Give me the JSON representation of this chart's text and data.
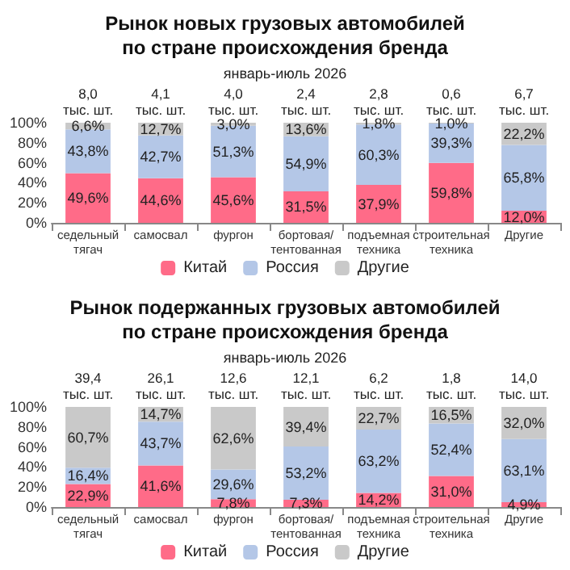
{
  "chart_data": [
    {
      "type": "bar",
      "title": "Рынок новых грузовых автомобилей\nпо стране происхождения бренда",
      "subtitle": "январь-июль 2026",
      "stacked": true,
      "legend": "bottom",
      "grid": false,
      "categories": [
        "седельный тягач",
        "самосвал",
        "фургон",
        "бортовая/ тентованная",
        "подъемная техника",
        "строительная техника",
        "Другие"
      ],
      "ylim": [
        0,
        100
      ],
      "yticks": [
        {
          "value": 0,
          "label": "0%"
        },
        {
          "value": 20,
          "label": "20%"
        },
        {
          "value": 40,
          "label": "40%"
        },
        {
          "value": 60,
          "label": "60%"
        },
        {
          "value": 80,
          "label": "80%"
        },
        {
          "value": 100,
          "label": "100%"
        }
      ],
      "annotations": [
        {
          "text": "8,0 тыс. шт.",
          "x": "седельный тягач",
          "y": 100
        },
        {
          "text": "4,1 тыс. шт.",
          "x": "самосвал",
          "y": 100
        },
        {
          "text": "4,0 тыс. шт.",
          "x": "фургон",
          "y": 100
        },
        {
          "text": "2,4 тыс. шт.",
          "x": "бортовая/ тентованная",
          "y": 100
        },
        {
          "text": "2,8 тыс. шт.",
          "x": "подъемная техника",
          "y": 100
        },
        {
          "text": "0,6 тыс. шт.",
          "x": "строительная техника",
          "y": 100
        },
        {
          "text": "6,7 тыс. шт.",
          "x": "Другие",
          "y": 100
        }
      ],
      "series": [
        {
          "name": "Китай",
          "color": "#ff6b88",
          "values": [
            49.6,
            44.6,
            45.6,
            31.5,
            37.9,
            59.8,
            12.0
          ],
          "value_labels": [
            "49,6%",
            "44,6%",
            "45,6%",
            "31,5%",
            "37,9%",
            "59,8%",
            "12,0%"
          ]
        },
        {
          "name": "Россия",
          "color": "#b4c7e7",
          "values": [
            43.8,
            42.7,
            51.3,
            54.9,
            60.3,
            39.3,
            65.8
          ],
          "value_labels": [
            "43,8%",
            "42,7%",
            "51,3%",
            "54,9%",
            "60,3%",
            "39,3%",
            "65,8%"
          ]
        },
        {
          "name": "Другие",
          "color": "#c9c9c9",
          "values": [
            6.6,
            12.7,
            3.0,
            13.6,
            1.8,
            1.0,
            22.2
          ],
          "value_labels": [
            "6,6%",
            "12,7%",
            "3,0%",
            "13,6%",
            "1,8%",
            "1,0%",
            "22,2%"
          ]
        }
      ]
    },
    {
      "type": "bar",
      "title": "Рынок подержанных грузовых автомобилей\nпо стране происхождения бренда",
      "subtitle": "январь-июль 2026",
      "stacked": true,
      "legend": "bottom",
      "grid": false,
      "categories": [
        "седельный тягач",
        "самосвал",
        "фургон",
        "бортовая/ тентованная",
        "подъемная техника",
        "строительная техника",
        "Другие"
      ],
      "ylim": [
        0,
        100
      ],
      "yticks": [
        {
          "value": 0,
          "label": "0%"
        },
        {
          "value": 20,
          "label": "20%"
        },
        {
          "value": 40,
          "label": "40%"
        },
        {
          "value": 60,
          "label": "60%"
        },
        {
          "value": 80,
          "label": "80%"
        },
        {
          "value": 100,
          "label": "100%"
        }
      ],
      "annotations": [
        {
          "text": "39,4 тыс. шт.",
          "x": "седельный тягач",
          "y": 100
        },
        {
          "text": "26,1 тыс. шт.",
          "x": "самосвал",
          "y": 100
        },
        {
          "text": "12,6 тыс. шт.",
          "x": "фургон",
          "y": 100
        },
        {
          "text": "12,1 тыс. шт.",
          "x": "бортовая/ тентованная",
          "y": 100
        },
        {
          "text": "6,2 тыс. шт.",
          "x": "подъемная техника",
          "y": 100
        },
        {
          "text": "1,8 тыс. шт.",
          "x": "строительная техника",
          "y": 100
        },
        {
          "text": "14,0 тыс. шт.",
          "x": "Другие",
          "y": 100
        }
      ],
      "series": [
        {
          "name": "Китай",
          "color": "#ff6b88",
          "values": [
            22.9,
            41.6,
            7.8,
            7.3,
            14.2,
            31.0,
            4.9
          ],
          "value_labels": [
            "22,9%",
            "41,6%",
            "7,8%",
            "7,3%",
            "14,2%",
            "31,0%",
            "4,9%"
          ]
        },
        {
          "name": "Россия",
          "color": "#b4c7e7",
          "values": [
            16.4,
            43.7,
            29.6,
            53.2,
            63.2,
            52.4,
            63.1
          ],
          "value_labels": [
            "16,4%",
            "43,7%",
            "29,6%",
            "53,2%",
            "63,2%",
            "52,4%",
            "63,1%"
          ]
        },
        {
          "name": "Другие",
          "color": "#c9c9c9",
          "values": [
            60.7,
            14.7,
            62.6,
            39.4,
            22.7,
            16.5,
            32.0
          ],
          "value_labels": [
            "60,7%",
            "14,7%",
            "62,6%",
            "39,4%",
            "22,7%",
            "16,5%",
            "32,0%"
          ]
        }
      ]
    }
  ]
}
